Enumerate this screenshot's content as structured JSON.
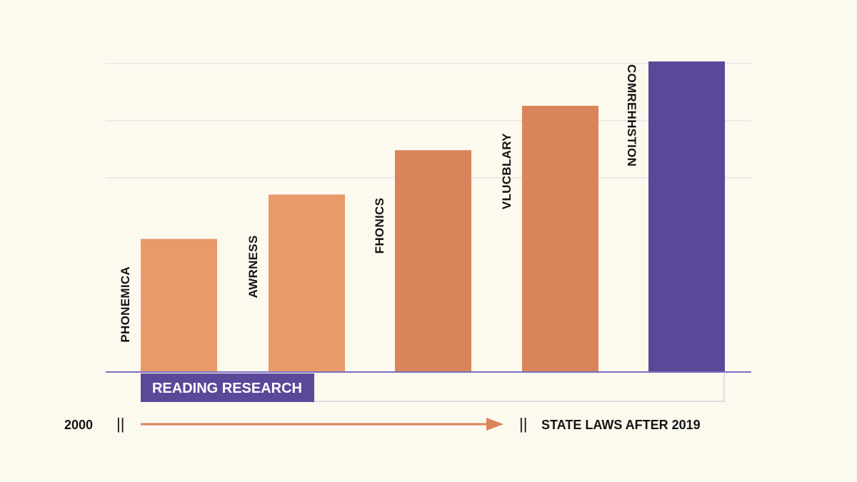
{
  "chart_data": {
    "type": "bar",
    "categories": [
      "PHONEMICA",
      "AWRNESS",
      "FHONICS",
      "VLUCBLARY",
      "COMREHHSTION"
    ],
    "values": [
      3,
      4,
      5,
      6,
      7
    ],
    "ylim": [
      0,
      7.5
    ],
    "grid": true,
    "legend": "none",
    "colors": [
      "#e89a6a",
      "#e89a6a",
      "#d9845a",
      "#d9845a",
      "#5b4898"
    ],
    "xlabel": "",
    "ylabel": ""
  },
  "banner": {
    "label": "READING RESEARCH",
    "color": "#5b4898"
  },
  "timeline": {
    "start_label": "2000",
    "separator": "||",
    "end_label": "STATE LAWS AFTER 2019",
    "arrow_color": "#d9845a"
  },
  "colors": {
    "background": "#fcf9ef",
    "baseline": "#7b6fc0",
    "gridline": "#dcdbe3"
  }
}
